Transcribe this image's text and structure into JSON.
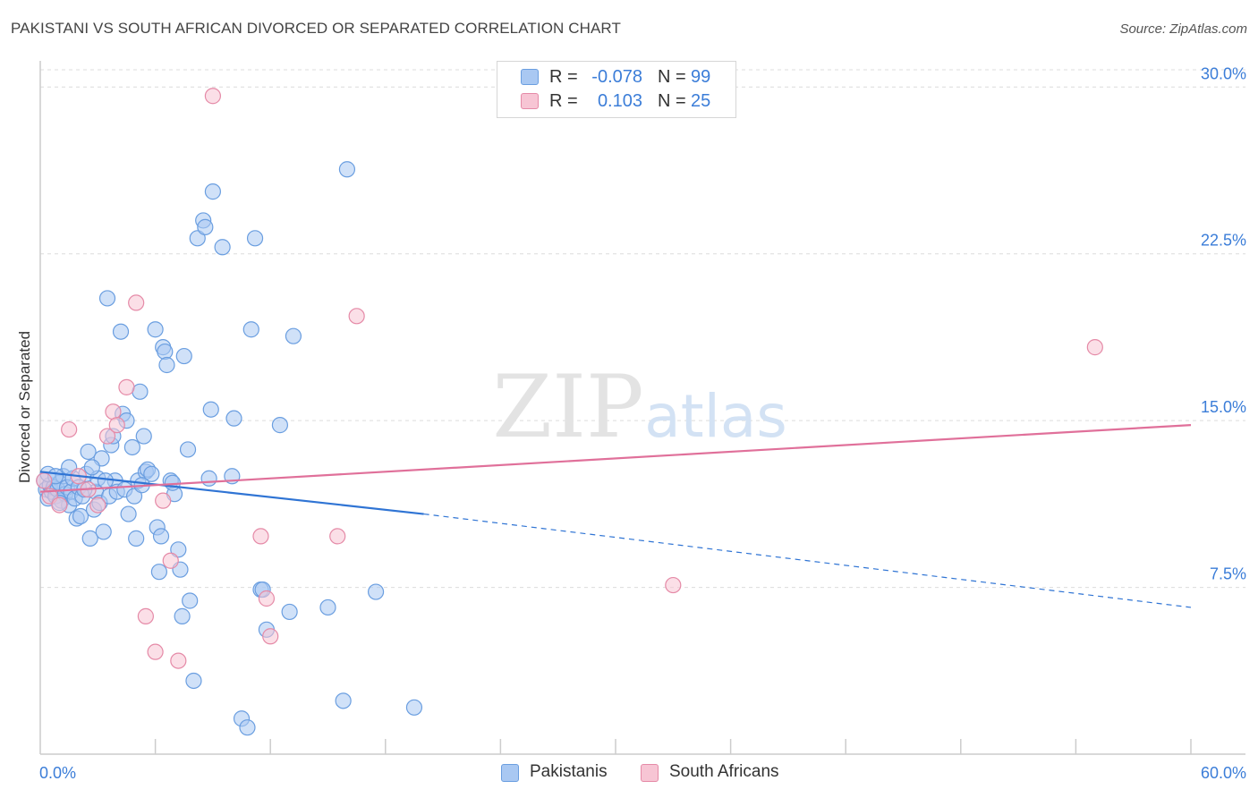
{
  "title": "PAKISTANI VS SOUTH AFRICAN DIVORCED OR SEPARATED CORRELATION CHART",
  "source": "Source: ZipAtlas.com",
  "watermark": {
    "zip": "ZIP",
    "atlas": "atlas"
  },
  "stats": [
    {
      "r_label": "R =",
      "r_value": "-0.078",
      "n_label": "N =",
      "n_value": "99",
      "color": "#a9c8f2",
      "border": "#6a9ee0"
    },
    {
      "r_label": "R =",
      "r_value": "0.103",
      "n_label": "N =",
      "n_value": "25",
      "color": "#f7c5d4",
      "border": "#e58aa7"
    }
  ],
  "legend": [
    {
      "label": "Pakistanis",
      "color": "#a9c8f2",
      "border": "#6a9ee0"
    },
    {
      "label": "South Africans",
      "color": "#f7c5d4",
      "border": "#e58aa7"
    }
  ],
  "chart_data": {
    "type": "scatter",
    "title": "PAKISTANI VS SOUTH AFRICAN DIVORCED OR SEPARATED CORRELATION CHART",
    "xlabel": "",
    "ylabel": "Divorced or Separated",
    "xlim": [
      0,
      60
    ],
    "ylim": [
      0,
      31.5
    ],
    "x_tick_labels": [
      "0.0%",
      "60.0%"
    ],
    "y_ticks": [
      7.5,
      15.0,
      22.5,
      30.0
    ],
    "y_tick_labels": [
      "7.5%",
      "15.0%",
      "22.5%",
      "30.0%"
    ],
    "grid": true,
    "legend_placement": "bottom-center",
    "series": [
      {
        "name": "Pakistanis",
        "color": "#6a9ee0",
        "fill": "#a9c8f2",
        "trend": {
          "x0": 0,
          "y0": 12.7,
          "x1": 20,
          "y1": 10.8,
          "x_dash_end": 60,
          "y_dash_end": 6.6
        },
        "points": [
          [
            0.2,
            12.3
          ],
          [
            0.3,
            11.9
          ],
          [
            0.4,
            11.5
          ],
          [
            0.5,
            12.1
          ],
          [
            0.6,
            11.8
          ],
          [
            0.7,
            12.0
          ],
          [
            0.8,
            11.6
          ],
          [
            0.9,
            11.9
          ],
          [
            1.0,
            12.2
          ],
          [
            1.1,
            11.4
          ],
          [
            1.2,
            12.5
          ],
          [
            1.3,
            11.7
          ],
          [
            1.4,
            12.0
          ],
          [
            1.5,
            11.2
          ],
          [
            1.6,
            11.8
          ],
          [
            1.7,
            12.4
          ],
          [
            1.8,
            11.5
          ],
          [
            1.9,
            10.6
          ],
          [
            2.0,
            12.0
          ],
          [
            2.1,
            10.7
          ],
          [
            2.2,
            11.6
          ],
          [
            2.4,
            12.6
          ],
          [
            2.5,
            13.6
          ],
          [
            2.6,
            9.7
          ],
          [
            2.8,
            11.0
          ],
          [
            2.9,
            11.8
          ],
          [
            3.0,
            12.4
          ],
          [
            3.1,
            11.3
          ],
          [
            3.3,
            10.0
          ],
          [
            3.5,
            20.5
          ],
          [
            3.6,
            11.6
          ],
          [
            3.7,
            13.9
          ],
          [
            3.8,
            14.3
          ],
          [
            3.9,
            12.3
          ],
          [
            4.0,
            11.8
          ],
          [
            4.2,
            19.0
          ],
          [
            4.3,
            15.3
          ],
          [
            4.4,
            11.9
          ],
          [
            4.5,
            15.0
          ],
          [
            4.6,
            10.8
          ],
          [
            4.8,
            13.8
          ],
          [
            5.0,
            9.7
          ],
          [
            5.1,
            12.3
          ],
          [
            5.2,
            16.3
          ],
          [
            5.4,
            14.3
          ],
          [
            5.5,
            12.7
          ],
          [
            5.6,
            12.8
          ],
          [
            5.8,
            12.6
          ],
          [
            6.0,
            19.1
          ],
          [
            6.1,
            10.2
          ],
          [
            6.2,
            8.2
          ],
          [
            6.4,
            18.3
          ],
          [
            6.5,
            18.1
          ],
          [
            6.6,
            17.5
          ],
          [
            6.8,
            12.3
          ],
          [
            7.0,
            11.7
          ],
          [
            7.2,
            9.2
          ],
          [
            7.3,
            8.3
          ],
          [
            7.4,
            6.2
          ],
          [
            7.5,
            17.9
          ],
          [
            7.7,
            13.7
          ],
          [
            8.0,
            3.3
          ],
          [
            8.2,
            23.2
          ],
          [
            8.5,
            24.0
          ],
          [
            8.6,
            23.7
          ],
          [
            8.8,
            12.4
          ],
          [
            8.9,
            15.5
          ],
          [
            9.0,
            25.3
          ],
          [
            9.5,
            22.8
          ],
          [
            10.0,
            12.5
          ],
          [
            10.1,
            15.1
          ],
          [
            10.5,
            1.6
          ],
          [
            10.8,
            1.2
          ],
          [
            11.0,
            19.1
          ],
          [
            11.2,
            23.2
          ],
          [
            11.5,
            7.4
          ],
          [
            11.6,
            7.4
          ],
          [
            11.8,
            5.6
          ],
          [
            12.5,
            14.8
          ],
          [
            13.0,
            6.4
          ],
          [
            13.2,
            18.8
          ],
          [
            15.0,
            6.6
          ],
          [
            15.8,
            2.4
          ],
          [
            16.0,
            26.3
          ],
          [
            17.5,
            7.3
          ],
          [
            19.5,
            2.1
          ],
          [
            3.2,
            13.3
          ],
          [
            1.5,
            12.9
          ],
          [
            6.9,
            12.2
          ],
          [
            0.4,
            12.6
          ],
          [
            2.7,
            12.9
          ],
          [
            4.9,
            11.6
          ],
          [
            3.4,
            12.3
          ],
          [
            5.3,
            12.1
          ],
          [
            1.0,
            11.3
          ],
          [
            0.8,
            12.5
          ],
          [
            2.3,
            11.9
          ],
          [
            6.3,
            9.8
          ],
          [
            7.8,
            6.9
          ]
        ]
      },
      {
        "name": "South Africans",
        "color": "#e58aa7",
        "fill": "#f7c5d4",
        "trend": {
          "x0": 0,
          "y0": 11.8,
          "x1": 60,
          "y1": 14.8
        },
        "points": [
          [
            0.2,
            12.3
          ],
          [
            0.5,
            11.6
          ],
          [
            1.0,
            11.2
          ],
          [
            1.5,
            14.6
          ],
          [
            2.0,
            12.5
          ],
          [
            2.5,
            11.9
          ],
          [
            3.0,
            11.2
          ],
          [
            3.5,
            14.3
          ],
          [
            3.8,
            15.4
          ],
          [
            4.0,
            14.8
          ],
          [
            4.5,
            16.5
          ],
          [
            5.0,
            20.3
          ],
          [
            5.5,
            6.2
          ],
          [
            6.0,
            4.6
          ],
          [
            6.4,
            11.4
          ],
          [
            6.8,
            8.7
          ],
          [
            7.2,
            4.2
          ],
          [
            9.0,
            29.6
          ],
          [
            11.5,
            9.8
          ],
          [
            11.8,
            7.0
          ],
          [
            12.0,
            5.3
          ],
          [
            15.5,
            9.8
          ],
          [
            16.5,
            19.7
          ],
          [
            33.0,
            7.6
          ],
          [
            55.0,
            18.3
          ]
        ]
      }
    ]
  }
}
